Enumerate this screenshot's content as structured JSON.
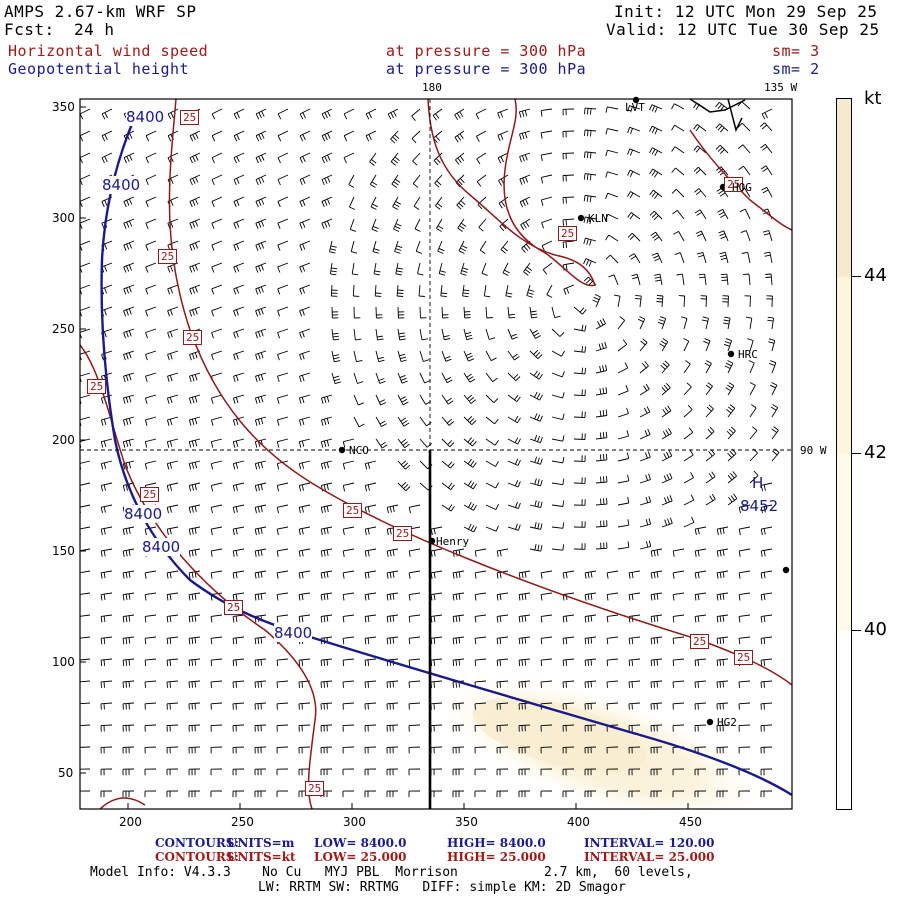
{
  "header": {
    "model": "AMPS 2.67-km WRF SP",
    "forecast_label": "Fcst:",
    "forecast_value": "24 h",
    "init": "Init: 12 UTC Mon 29 Sep 25",
    "valid": "Valid: 12 UTC Tue 30 Sep 25",
    "field1_name": "Horizontal wind speed",
    "field1_level": "at pressure =  300 hPa",
    "field1_sm": "sm= 3",
    "field2_name": "Geopotential height",
    "field2_level": "at pressure =  300 hPa",
    "field2_sm": "sm= 2"
  },
  "map": {
    "x_ticks": [
      "200",
      "250",
      "300",
      "350",
      "400",
      "450"
    ],
    "y_ticks": [
      "350",
      "300",
      "250",
      "200",
      "150",
      "100",
      "50"
    ],
    "meridian_top": "180",
    "meridian_135": "135 W",
    "meridian_90": "90 W",
    "stations": [
      "LVT",
      "KLN",
      "HOG",
      "HRC",
      "NCO",
      "Henry",
      "HG2"
    ],
    "height_contour_label": "8400",
    "wind_contour_label": "25",
    "high_marker": "H",
    "high_value": "8452"
  },
  "colorbar": {
    "unit": "kt",
    "levels": [
      "44",
      "42",
      "40"
    ],
    "colors": [
      "#f5ead0",
      "#fdf6dc",
      "#fffbea",
      "#ffffff"
    ]
  },
  "footer": {
    "line1_prefix": "CONTOURS:",
    "line1_units": "UNITS=m",
    "line1_low": "LOW=  8400.0",
    "line1_high": "HIGH=  8400.0",
    "line1_interval": "INTERVAL=     120.00",
    "line2_prefix": "CONTOURS:",
    "line2_units": "UNITS=kt",
    "line2_low": "LOW=  25.000",
    "line2_high": "HIGH=  25.000",
    "line2_interval": "INTERVAL=     25.000",
    "model_info": "Model Info: V4.3.3    No Cu   MYJ PBL  Morrison           2.7 km,  60 levels,",
    "physics_info": "LW: RRTM SW: RRTMG   DIFF: simple KM: 2D Smagor"
  }
}
